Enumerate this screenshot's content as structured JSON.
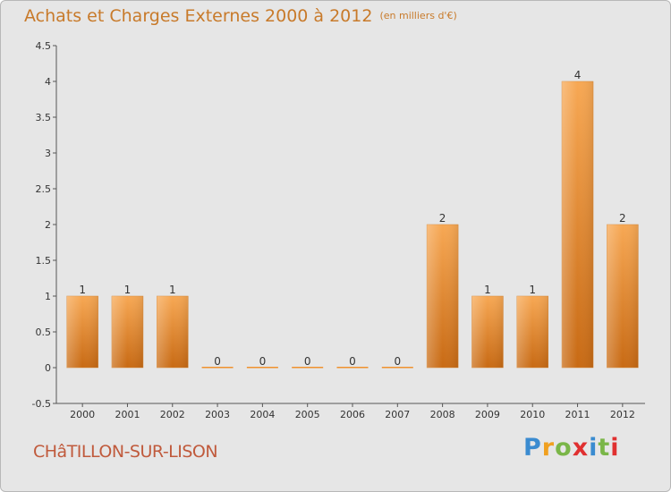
{
  "title": "Achats et Charges Externes 2000 à 2012",
  "title_unit": "(en milliers d'€)",
  "commune": "CHâTILLON-SUR-LISON",
  "logo": {
    "letters": [
      "P",
      "r",
      "o",
      "x",
      "i",
      "t",
      "i"
    ],
    "colors": [
      "#3a8bd0",
      "#f0a020",
      "#7ab648",
      "#e03030",
      "#3a8bd0",
      "#7ab648",
      "#e03030"
    ]
  },
  "colors": {
    "bar": "#f0922e",
    "bar_light": "#f7a854",
    "bar_dark": "#c86a14",
    "title": "#c87a2a"
  },
  "chart_data": {
    "type": "bar",
    "title": "Achats et Charges Externes 2000 à 2012",
    "subtitle": "(en milliers d'€)",
    "categories": [
      "2000",
      "2001",
      "2002",
      "2003",
      "2004",
      "2005",
      "2006",
      "2007",
      "2008",
      "2009",
      "2010",
      "2011",
      "2012"
    ],
    "values": [
      1,
      1,
      1,
      0,
      0,
      0,
      0,
      0,
      2,
      1,
      1,
      4,
      2
    ],
    "value_labels": [
      "1",
      "1",
      "1",
      "0",
      "0",
      "0",
      "0",
      "0",
      "2",
      "1",
      "1",
      "4",
      "2"
    ],
    "ylim": [
      -0.5,
      4.5
    ],
    "yticks": [
      "-0.5",
      "0",
      "0.5",
      "1",
      "1.5",
      "2",
      "2.5",
      "3",
      "3.5",
      "4",
      "4.5"
    ],
    "ytick_values": [
      -0.5,
      0,
      0.5,
      1,
      1.5,
      2,
      2.5,
      3,
      3.5,
      4,
      4.5
    ],
    "grid": false,
    "legend": "none"
  }
}
